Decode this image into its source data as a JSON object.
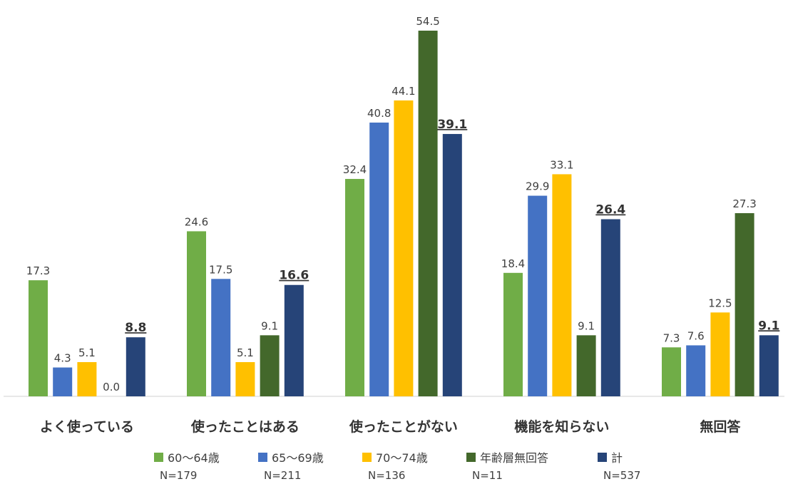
{
  "chart_data": {
    "type": "bar",
    "categories": [
      "よく使っている",
      "使ったことはある",
      "使ったことがない",
      "機能を知らない",
      "無回答"
    ],
    "series": [
      {
        "name": "60〜64歳",
        "n": "N=179",
        "color": "#70AD47",
        "values": [
          17.3,
          24.6,
          32.4,
          18.4,
          7.3
        ]
      },
      {
        "name": "65〜69歳",
        "n": "N=211",
        "color": "#4472C4",
        "values": [
          4.3,
          17.5,
          40.8,
          29.9,
          7.6
        ]
      },
      {
        "name": "70〜74歳",
        "n": "N=136",
        "color": "#FFC000",
        "values": [
          5.1,
          5.1,
          44.1,
          33.1,
          12.5
        ]
      },
      {
        "name": "年齢層無回答",
        "n": "N=11",
        "color": "#43682B",
        "values": [
          0.0,
          9.1,
          54.5,
          9.1,
          27.3
        ]
      },
      {
        "name": "計",
        "n": "N=537",
        "color": "#264478",
        "values": [
          8.8,
          16.6,
          39.1,
          26.4,
          9.1
        ]
      }
    ],
    "ylim": [
      0,
      54.5
    ],
    "grid": false,
    "legend": "bottom"
  }
}
